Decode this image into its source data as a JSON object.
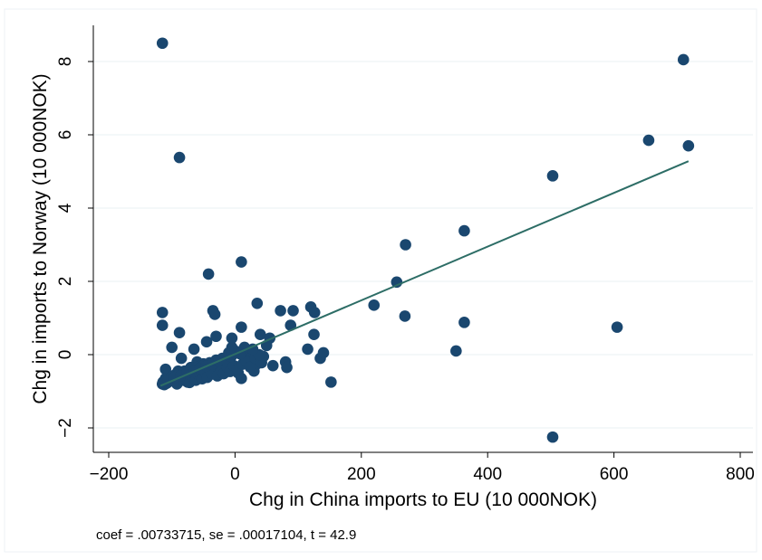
{
  "chart_data": {
    "type": "scatter",
    "xlabel": "Chg in China imports to EU (10 000NOK)",
    "ylabel": "Chg in imports to Norway (10 000NOK)",
    "xlim": [
      -200,
      800
    ],
    "ylim": [
      -2.5,
      9
    ],
    "x_ticks": [
      -200,
      0,
      200,
      400,
      600,
      800
    ],
    "x_tick_labels": [
      "−200",
      "0",
      "200",
      "400",
      "600",
      "800"
    ],
    "y_ticks": [
      -2,
      0,
      2,
      4,
      6,
      8
    ],
    "y_tick_labels": [
      "−2",
      "0",
      "2",
      "4",
      "6",
      "8"
    ],
    "grid": "horizontal",
    "marker_color": "#1a476f",
    "fit_line_color": "#2d6d66",
    "note": "coef = .00733715, se = .00017104, t = 42.9",
    "fit_line": {
      "x": [
        -118,
        718
      ],
      "y": [
        -0.85,
        5.28
      ]
    },
    "points": {
      "x": [
        -115,
        -88,
        710,
        655,
        718,
        503,
        -115,
        363,
        270,
        -115,
        -88,
        10,
        -42,
        256,
        220,
        269,
        363,
        -115,
        -35,
        35,
        -32,
        -5,
        10,
        72,
        92,
        120,
        126,
        40,
        -45,
        -65,
        -85,
        -60,
        -100,
        -110,
        -30,
        -5,
        20,
        55,
        80,
        115,
        135,
        -90,
        -80,
        -70,
        -50,
        -40,
        -20,
        0,
        10,
        30,
        45,
        60,
        -105,
        -95,
        -75,
        -55,
        -25,
        -15,
        5,
        25,
        35,
        -112,
        -108,
        -98,
        -92,
        -82,
        -78,
        -72,
        -68,
        -62,
        -58,
        -52,
        -48,
        -44,
        -38,
        -28,
        -22,
        -18,
        -12,
        -8,
        -2,
        4,
        12,
        18,
        24,
        32,
        42,
        -110,
        -100,
        -90,
        -80,
        -70,
        -60,
        -50,
        -40,
        -30,
        -20,
        -10,
        0,
        15,
        38,
        82,
        140,
        152,
        350,
        503,
        605,
        125,
        88,
        -114,
        -106,
        -96,
        -86,
        -76,
        -66,
        -56,
        -46,
        -36,
        -26,
        -16,
        -6,
        8,
        28,
        50
      ],
      "y": [
        8.5,
        5.38,
        8.05,
        5.85,
        5.7,
        4.88,
        1.15,
        3.38,
        3.0,
        0.8,
        0.6,
        2.53,
        2.2,
        1.98,
        1.35,
        1.05,
        0.88,
        -0.8,
        1.2,
        1.4,
        1.1,
        0.2,
        0.75,
        1.2,
        1.2,
        1.3,
        1.15,
        0.55,
        0.35,
        0.15,
        -0.1,
        -0.2,
        0.2,
        -0.4,
        0.5,
        0.45,
        0.0,
        0.45,
        -0.2,
        0.15,
        -0.1,
        -0.45,
        -0.6,
        -0.35,
        -0.25,
        -0.55,
        -0.15,
        -0.35,
        -0.65,
        -0.45,
        -0.05,
        -0.3,
        -0.7,
        -0.55,
        -0.75,
        -0.6,
        -0.4,
        -0.25,
        -0.5,
        -0.1,
        -0.25,
        -0.82,
        -0.78,
        -0.72,
        -0.8,
        -0.7,
        -0.68,
        -0.76,
        -0.6,
        -0.7,
        -0.55,
        -0.66,
        -0.48,
        -0.62,
        -0.5,
        -0.58,
        -0.42,
        -0.52,
        -0.36,
        -0.46,
        -0.3,
        -0.4,
        -0.26,
        -0.18,
        -0.34,
        -0.1,
        -0.22,
        -0.65,
        -0.6,
        -0.52,
        -0.45,
        -0.4,
        -0.35,
        -0.3,
        -0.22,
        -0.15,
        -0.1,
        0.05,
        0.1,
        0.2,
        0.0,
        -0.35,
        0.05,
        -0.75,
        0.1,
        -2.25,
        0.75,
        0.55,
        0.8,
        -0.75,
        -0.7,
        -0.62,
        -0.58,
        -0.5,
        -0.46,
        -0.38,
        -0.32,
        -0.26,
        -0.18,
        -0.12,
        -0.05,
        0.02,
        0.15,
        0.25
      ]
    }
  }
}
